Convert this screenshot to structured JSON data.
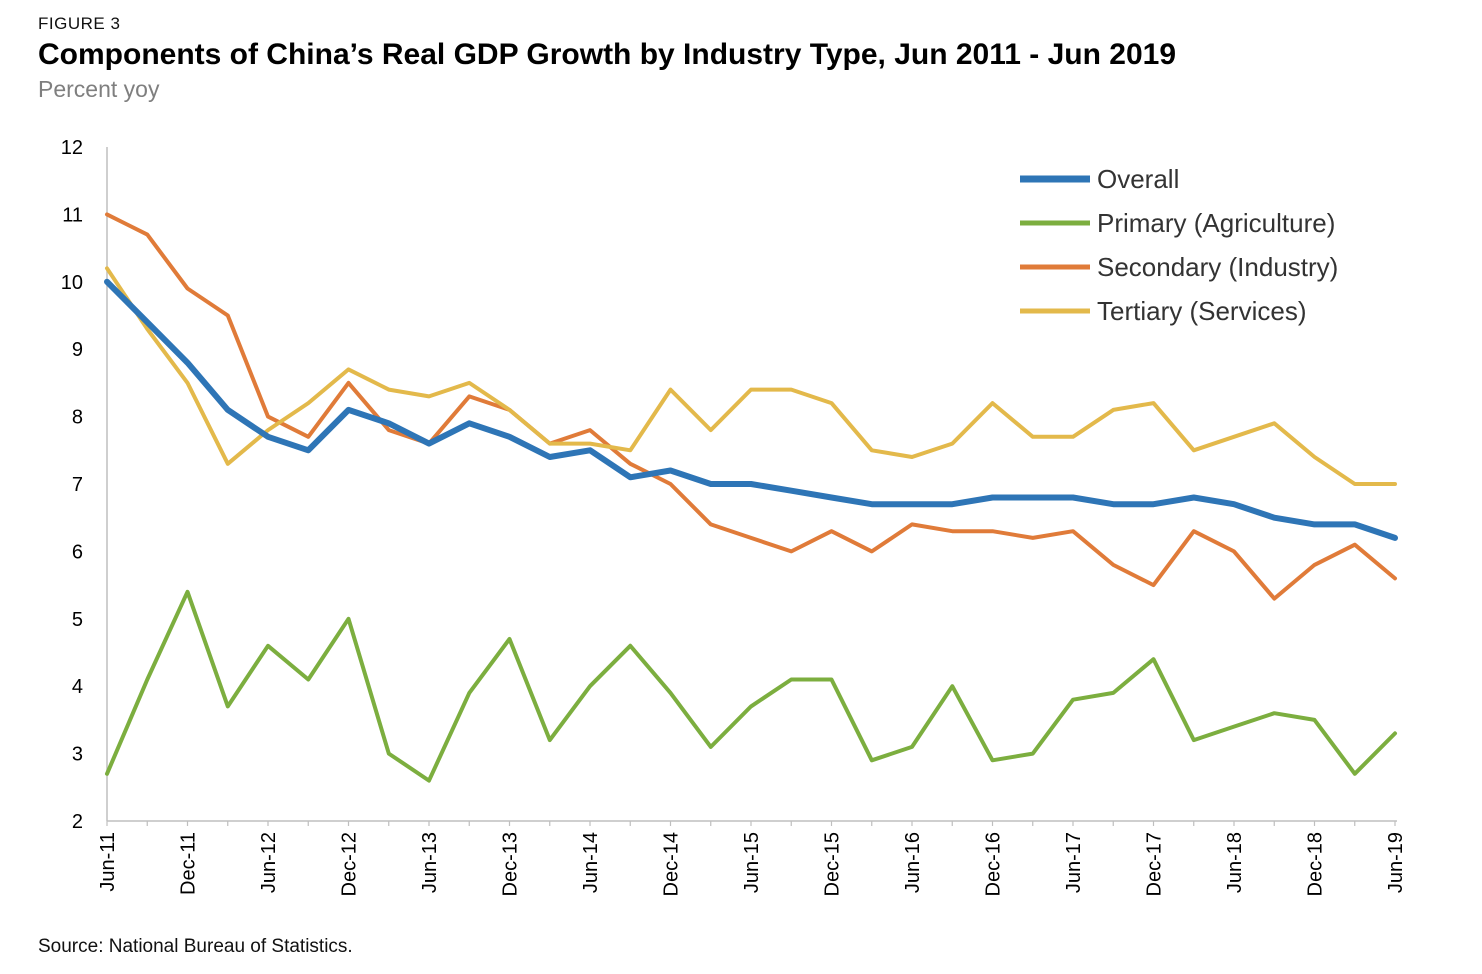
{
  "figure_label": "FIGURE 3",
  "title": "Components of China’s Real GDP Growth by Industry Type, Jun 2011 - Jun 2019",
  "subtitle": "Percent yoy",
  "source": "Source: National Bureau of Statistics.",
  "chart_data": {
    "type": "line",
    "x": [
      "Jun-11",
      "Sep-11",
      "Dec-11",
      "Mar-12",
      "Jun-12",
      "Sep-12",
      "Dec-12",
      "Mar-13",
      "Jun-13",
      "Sep-13",
      "Dec-13",
      "Mar-14",
      "Jun-14",
      "Sep-14",
      "Dec-14",
      "Mar-15",
      "Jun-15",
      "Sep-15",
      "Dec-15",
      "Mar-16",
      "Jun-16",
      "Sep-16",
      "Dec-16",
      "Mar-17",
      "Jun-17",
      "Sep-17",
      "Dec-17",
      "Mar-18",
      "Jun-18",
      "Sep-18",
      "Dec-18",
      "Mar-19",
      "Jun-19"
    ],
    "x_tick_labels": [
      "Jun-11",
      "Dec-11",
      "Jun-12",
      "Dec-12",
      "Jun-13",
      "Dec-13",
      "Jun-14",
      "Dec-14",
      "Jun-15",
      "Dec-15",
      "Jun-16",
      "Dec-16",
      "Jun-17",
      "Dec-17",
      "Jun-18",
      "Dec-18",
      "Jun-19"
    ],
    "y_ticks": [
      2,
      3,
      4,
      5,
      6,
      7,
      8,
      9,
      10,
      11,
      12
    ],
    "ylim": [
      2,
      12
    ],
    "grid": false,
    "legend_position": "top-right",
    "series": [
      {
        "name": "Overall",
        "color": "#2e75b6",
        "width": 6,
        "values": [
          10.0,
          9.4,
          8.8,
          8.1,
          7.7,
          7.5,
          8.1,
          7.9,
          7.6,
          7.9,
          7.7,
          7.4,
          7.5,
          7.1,
          7.2,
          7.0,
          7.0,
          6.9,
          6.8,
          6.7,
          6.7,
          6.7,
          6.8,
          6.8,
          6.8,
          6.7,
          6.7,
          6.8,
          6.7,
          6.5,
          6.4,
          6.4,
          6.2
        ]
      },
      {
        "name": "Primary (Agriculture)",
        "color": "#7cae3f",
        "width": 4,
        "values": [
          2.7,
          4.1,
          5.4,
          3.7,
          4.6,
          4.1,
          5.0,
          3.0,
          2.6,
          3.9,
          4.7,
          3.2,
          4.0,
          4.6,
          3.9,
          3.1,
          3.7,
          4.1,
          4.1,
          2.9,
          3.1,
          4.0,
          2.9,
          3.0,
          3.8,
          3.9,
          4.4,
          3.2,
          3.4,
          3.6,
          3.5,
          2.7,
          3.3
        ]
      },
      {
        "name": "Secondary (Industry)",
        "color": "#e07b39",
        "width": 4,
        "values": [
          11.0,
          10.7,
          9.9,
          9.5,
          8.0,
          7.7,
          8.5,
          7.8,
          7.6,
          8.3,
          8.1,
          7.6,
          7.8,
          7.3,
          7.0,
          6.4,
          6.2,
          6.0,
          6.3,
          6.0,
          6.4,
          6.3,
          6.3,
          6.2,
          6.3,
          5.8,
          5.5,
          6.3,
          6.0,
          5.3,
          5.8,
          6.1,
          5.6
        ]
      },
      {
        "name": "Tertiary (Services)",
        "color": "#e3b94b",
        "width": 4,
        "values": [
          10.2,
          9.3,
          8.5,
          7.3,
          7.8,
          8.2,
          8.7,
          8.4,
          8.3,
          8.5,
          8.1,
          7.6,
          7.6,
          7.5,
          8.4,
          7.8,
          8.4,
          8.4,
          8.2,
          7.5,
          7.4,
          7.6,
          8.2,
          7.7,
          7.7,
          8.1,
          8.2,
          7.5,
          7.7,
          7.9,
          7.4,
          7.0,
          7.0
        ]
      }
    ]
  }
}
